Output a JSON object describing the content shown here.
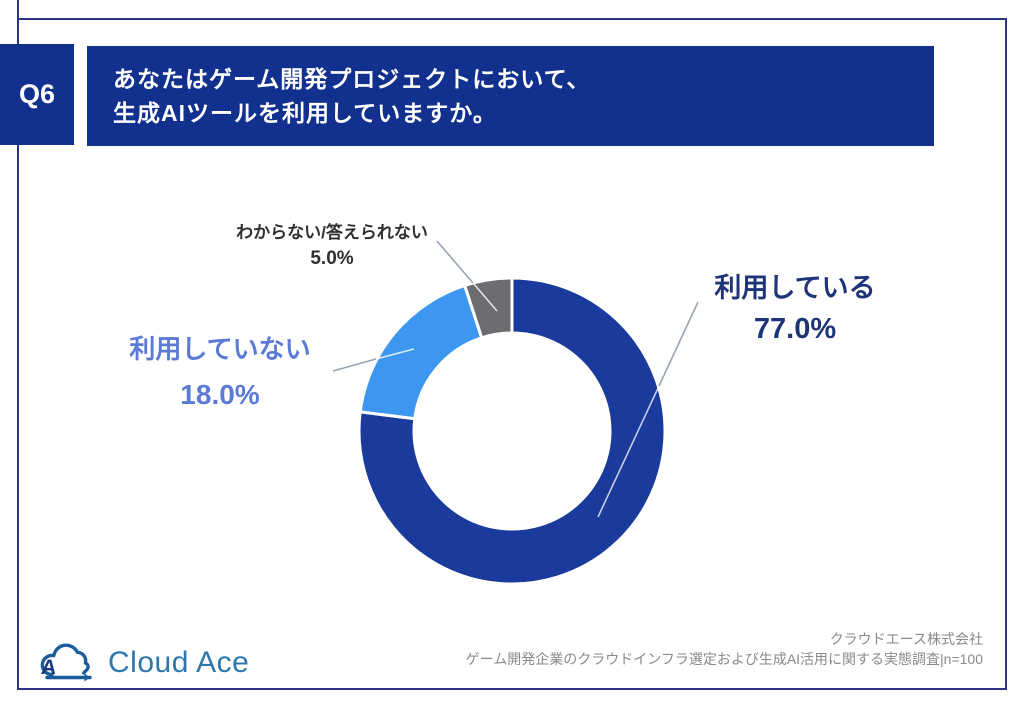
{
  "header": {
    "q_label": "Q6",
    "title_line1": "あなたはゲーム開発プロジェクトにおいて、",
    "title_line2": "生成AIツールを利用していますか。",
    "bg_color": "#12318e",
    "text_color": "#ffffff"
  },
  "chart_data": {
    "type": "pie",
    "subtype": "donut",
    "categories": [
      "利用している",
      "利用していない",
      "わからない/答えられない"
    ],
    "values": [
      77.0,
      18.0,
      5.0
    ],
    "unit": "%",
    "series": [
      {
        "label": "利用している",
        "value": 77.0,
        "display": "77.0%",
        "color": "#1a3a9c",
        "label_color": "#1f3478"
      },
      {
        "label": "利用していない",
        "value": 18.0,
        "display": "18.0%",
        "color": "#3d97f0",
        "label_color": "#5b7ad6"
      },
      {
        "label": "わからない/答えられない",
        "value": 5.0,
        "display": "5.0%",
        "color": "#6b6d70",
        "label_color": "#2f2f2f"
      }
    ],
    "start_angle_deg": 0,
    "direction": "clockwise",
    "inner_radius_ratio": 0.64,
    "slice_gap_color": "#ffffff",
    "legend_position": "callouts"
  },
  "footer": {
    "logo_text": "Cloud Ace",
    "company": "クラウドエース株式会社",
    "source": "ゲーム開発企業のクラウドインフラ選定および生成AI活用に関する実態調査|n=100"
  },
  "palette": {
    "frame_border": "#2c3380",
    "leader_line": "#9aa3b5",
    "logo_blue": "#2e77ad",
    "footer_text": "#8a8a8a"
  }
}
